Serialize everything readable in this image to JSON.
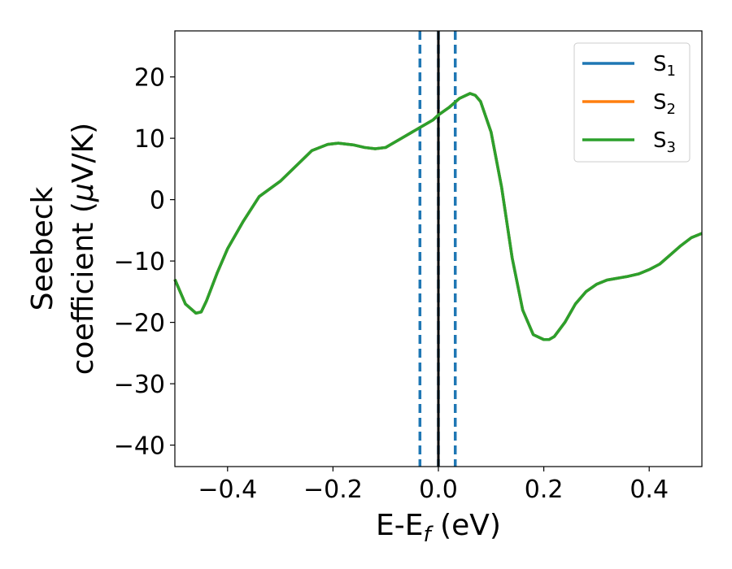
{
  "chart_data": {
    "type": "line",
    "xlabel": "E-E",
    "xlabel_sub": "f",
    "xlabel_unit": " (eV)",
    "ylabel_line1": "Seebeck",
    "ylabel_line2": "coefficient  (",
    "ylabel_mu": "μ",
    "ylabel_unit": "V/K)",
    "xlim": [
      -0.5,
      0.5
    ],
    "ylim": [
      -43.5,
      27.5
    ],
    "x_ticks": [
      -0.4,
      -0.2,
      0.0,
      0.2,
      0.4
    ],
    "x_tick_labels": [
      "−0.4",
      "−0.2",
      "0.0",
      "0.2",
      "0.4"
    ],
    "y_ticks": [
      -40,
      -30,
      -20,
      -10,
      0,
      10,
      20
    ],
    "y_tick_labels": [
      "−40",
      "−30",
      "−20",
      "−10",
      "0",
      "10",
      "20"
    ],
    "grid": false,
    "legend_position": "top-right",
    "vlines": [
      {
        "x": -0.035,
        "style": "dashed",
        "color": "#1f77b4"
      },
      {
        "x": 0.0,
        "style": "dashed",
        "color": "#1f77b4"
      },
      {
        "x": 0.032,
        "style": "dashed",
        "color": "#1f77b4"
      },
      {
        "x": 0.0,
        "style": "solid",
        "color": "#000000"
      }
    ],
    "series": [
      {
        "name": "S",
        "sub": "1",
        "color": "#1f77b4",
        "x": [
          -0.5,
          -0.48,
          -0.46,
          -0.45,
          -0.44,
          -0.42,
          -0.4,
          -0.37,
          -0.34,
          -0.3,
          -0.27,
          -0.24,
          -0.21,
          -0.19,
          -0.17,
          -0.16,
          -0.14,
          -0.12,
          -0.1,
          -0.09,
          -0.07,
          -0.05,
          -0.03,
          -0.01,
          0.0,
          0.02,
          0.04,
          0.06,
          0.07,
          0.08,
          0.1,
          0.12,
          0.14,
          0.16,
          0.18,
          0.2,
          0.21,
          0.22,
          0.24,
          0.26,
          0.28,
          0.3,
          0.32,
          0.34,
          0.36,
          0.38,
          0.4,
          0.42,
          0.44,
          0.46,
          0.48,
          0.5
        ],
        "y": [
          -13.0,
          -17.0,
          -18.5,
          -18.3,
          -16.5,
          -12.0,
          -8.0,
          -3.5,
          0.5,
          3.0,
          5.5,
          8.0,
          9.0,
          9.2,
          9.0,
          8.9,
          8.5,
          8.3,
          8.5,
          9.0,
          10.0,
          11.0,
          12.0,
          13.0,
          13.8,
          15.0,
          16.5,
          17.3,
          17.0,
          16.0,
          11.0,
          2.0,
          -9.5,
          -18.0,
          -22.0,
          -22.8,
          -22.8,
          -22.3,
          -20.0,
          -17.0,
          -15.0,
          -13.8,
          -13.1,
          -12.8,
          -12.5,
          -12.1,
          -11.4,
          -10.5,
          -9.0,
          -7.5,
          -6.2,
          -5.5
        ]
      },
      {
        "name": "S",
        "sub": "2",
        "color": "#ff7f0e",
        "x": [
          -0.5,
          -0.48,
          -0.46,
          -0.45,
          -0.44,
          -0.42,
          -0.4,
          -0.37,
          -0.34,
          -0.3,
          -0.27,
          -0.24,
          -0.21,
          -0.19,
          -0.17,
          -0.16,
          -0.14,
          -0.12,
          -0.1,
          -0.09,
          -0.07,
          -0.05,
          -0.03,
          -0.01,
          0.0,
          0.02,
          0.04,
          0.06,
          0.07,
          0.08,
          0.1,
          0.12,
          0.14,
          0.16,
          0.18,
          0.2,
          0.21,
          0.22,
          0.24,
          0.26,
          0.28,
          0.3,
          0.32,
          0.34,
          0.36,
          0.38,
          0.4,
          0.42,
          0.44,
          0.46,
          0.48,
          0.5
        ],
        "y": [
          -13.0,
          -17.0,
          -18.5,
          -18.3,
          -16.5,
          -12.0,
          -8.0,
          -3.5,
          0.5,
          3.0,
          5.5,
          8.0,
          9.0,
          9.2,
          9.0,
          8.9,
          8.5,
          8.3,
          8.5,
          9.0,
          10.0,
          11.0,
          12.0,
          13.0,
          13.8,
          15.0,
          16.5,
          17.3,
          17.0,
          16.0,
          11.0,
          2.0,
          -9.5,
          -18.0,
          -22.0,
          -22.8,
          -22.8,
          -22.3,
          -20.0,
          -17.0,
          -15.0,
          -13.8,
          -13.1,
          -12.8,
          -12.5,
          -12.1,
          -11.4,
          -10.5,
          -9.0,
          -7.5,
          -6.2,
          -5.5
        ]
      },
      {
        "name": "S",
        "sub": "3",
        "color": "#2ca02c",
        "x": [
          -0.5,
          -0.48,
          -0.46,
          -0.45,
          -0.44,
          -0.42,
          -0.4,
          -0.37,
          -0.34,
          -0.3,
          -0.27,
          -0.24,
          -0.21,
          -0.19,
          -0.17,
          -0.16,
          -0.14,
          -0.12,
          -0.1,
          -0.09,
          -0.07,
          -0.05,
          -0.03,
          -0.01,
          0.0,
          0.02,
          0.04,
          0.06,
          0.07,
          0.08,
          0.1,
          0.12,
          0.14,
          0.16,
          0.18,
          0.2,
          0.21,
          0.22,
          0.24,
          0.26,
          0.28,
          0.3,
          0.32,
          0.34,
          0.36,
          0.38,
          0.4,
          0.42,
          0.44,
          0.46,
          0.48,
          0.5
        ],
        "y": [
          -13.0,
          -17.0,
          -18.5,
          -18.3,
          -16.5,
          -12.0,
          -8.0,
          -3.5,
          0.5,
          3.0,
          5.5,
          8.0,
          9.0,
          9.2,
          9.0,
          8.9,
          8.5,
          8.3,
          8.5,
          9.0,
          10.0,
          11.0,
          12.0,
          13.0,
          13.8,
          15.0,
          16.5,
          17.3,
          17.0,
          16.0,
          11.0,
          2.0,
          -9.5,
          -18.0,
          -22.0,
          -22.8,
          -22.8,
          -22.3,
          -20.0,
          -17.0,
          -15.0,
          -13.8,
          -13.1,
          -12.8,
          -12.5,
          -12.1,
          -11.4,
          -10.5,
          -9.0,
          -7.5,
          -6.2,
          -5.5
        ]
      }
    ]
  }
}
